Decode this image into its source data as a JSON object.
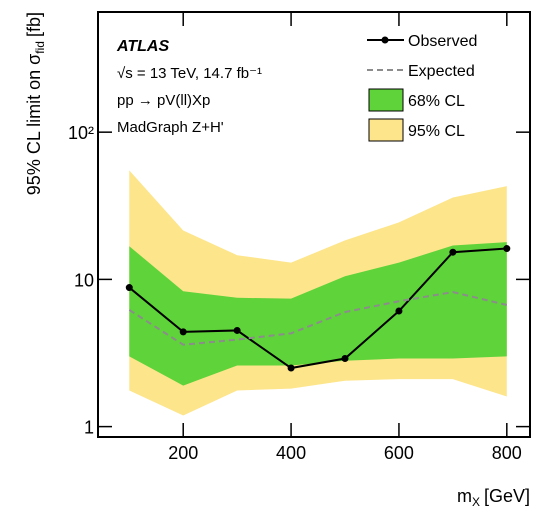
{
  "chart_data": {
    "type": "limit-bands",
    "y_label": {
      "main": "95% CL limit on σ",
      "sub": "fid",
      "unit": "[fb]"
    },
    "x_label": {
      "main": "m",
      "sub": "X",
      "unit": "[GeV]"
    },
    "annotations": [
      "ATLAS",
      "√s = 13 TeV, 14.7 fb⁻¹",
      "pp   → pV(ll)Xp",
      "MadGraph Z+H'"
    ],
    "x": [
      100,
      200,
      300,
      400,
      500,
      600,
      700,
      800
    ],
    "xlim": [
      42,
      843
    ],
    "xticks": [
      200,
      400,
      600,
      800
    ],
    "ylim": [
      0.85,
      655
    ],
    "log_y": true,
    "yticks": [
      1,
      10,
      {
        "value": 100,
        "label": "10²"
      }
    ],
    "series": [
      {
        "name": "Observed",
        "color": "#000000",
        "dashed": false,
        "markers": true,
        "values": [
          8.8,
          4.4,
          4.5,
          2.5,
          2.9,
          6.1,
          15.3,
          16.2
        ]
      },
      {
        "name": "Expected",
        "color": "#8c8c8c",
        "dashed": true,
        "markers": false,
        "values": [
          6.2,
          3.6,
          3.9,
          4.3,
          6.0,
          7.1,
          8.2,
          6.7
        ]
      }
    ],
    "bands": [
      {
        "name": "95% CL",
        "color": "#fde58c",
        "lower": [
          1.76,
          1.19,
          1.76,
          1.81,
          2.05,
          2.1,
          2.1,
          1.6
        ],
        "upper": [
          55,
          21.5,
          14.6,
          13,
          18.4,
          24.4,
          36,
          43
        ]
      },
      {
        "name": "68% CL",
        "color": "#5fd33a",
        "lower": [
          3.0,
          1.9,
          2.6,
          2.6,
          2.8,
          2.9,
          2.9,
          3.0
        ],
        "upper": [
          16.8,
          8.3,
          7.5,
          7.4,
          10.5,
          13,
          17,
          17.9
        ]
      }
    ]
  }
}
